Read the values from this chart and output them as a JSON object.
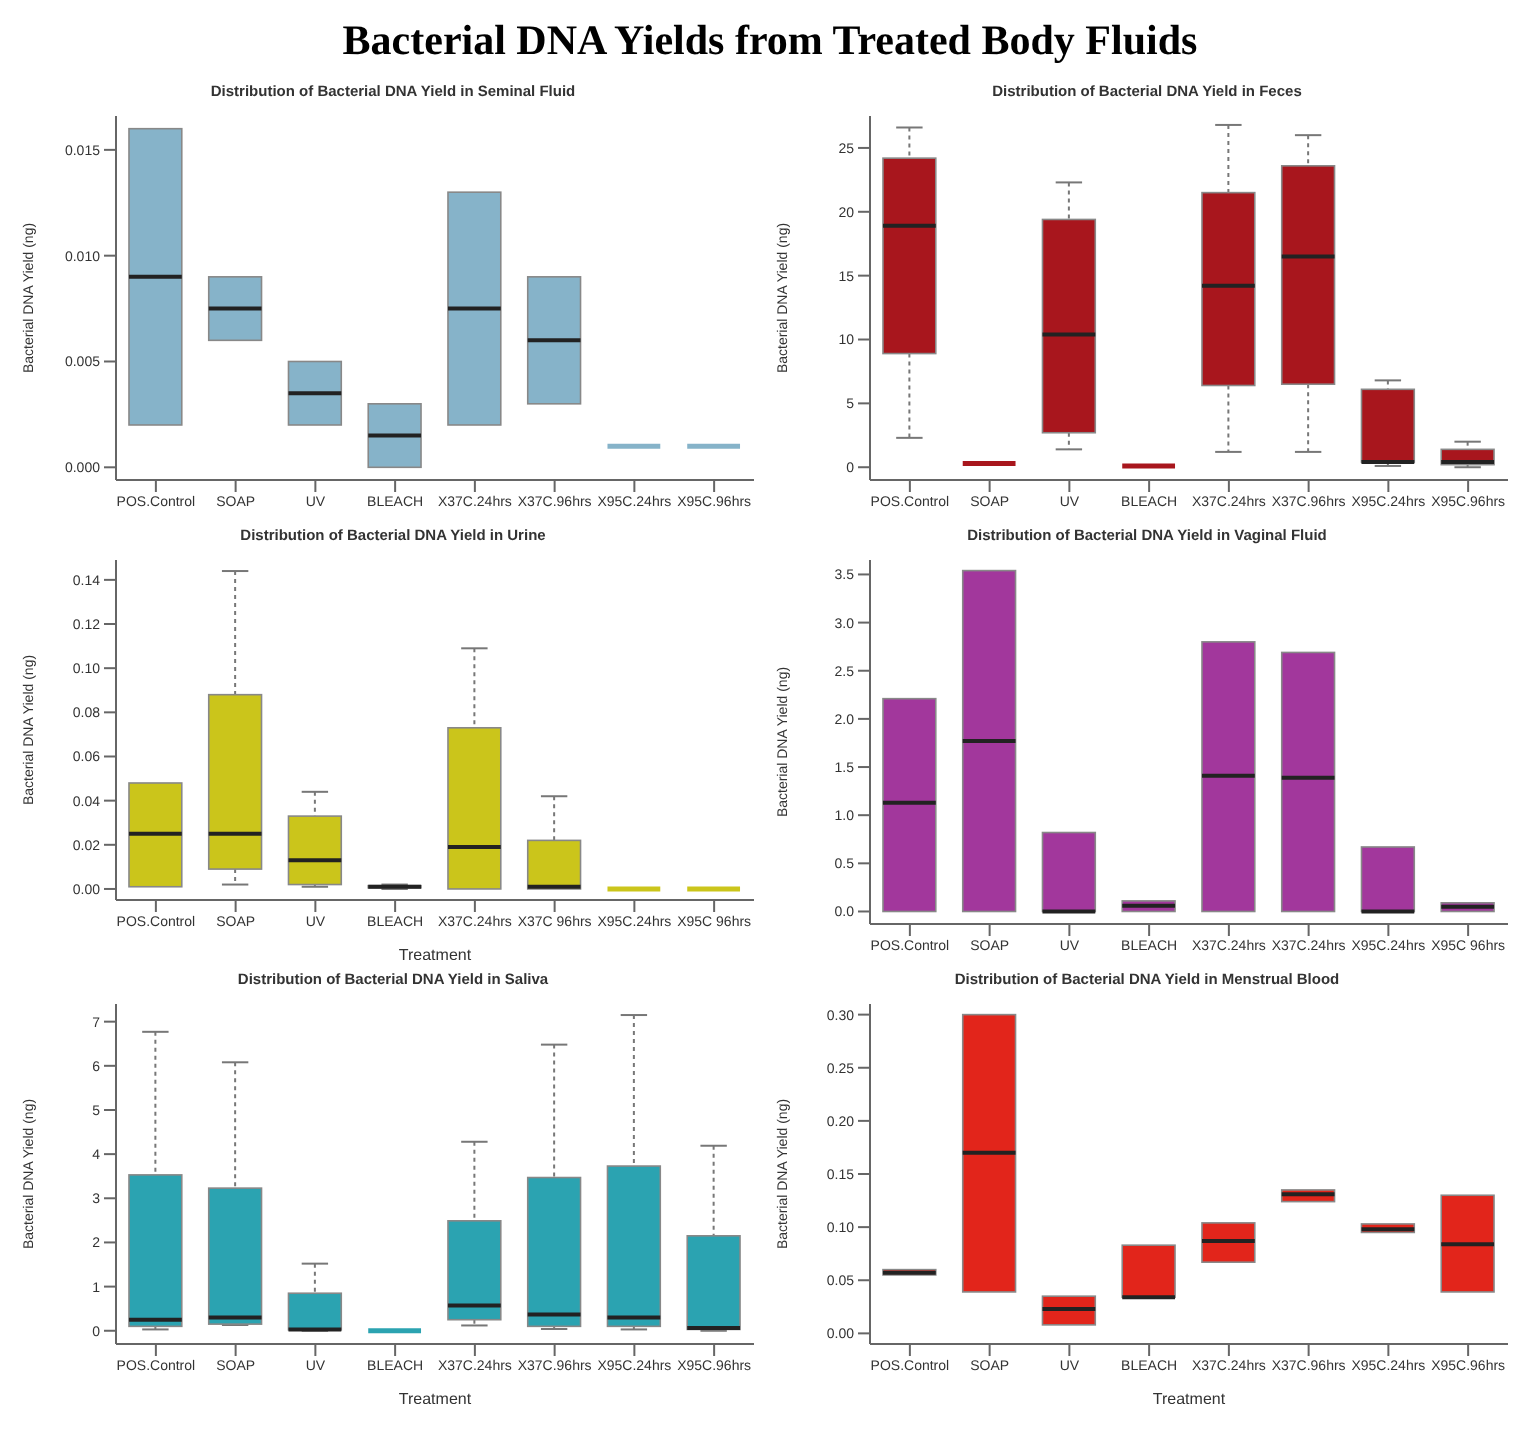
{
  "chart_data": [
    {
      "type": "box",
      "title": "Distribution of Bacterial DNA Yield in Seminal Fluid",
      "ylabel": "Bacterial DNA Yield (ng)",
      "annotations": [
        "Bacterial DNA Yields from Treated Body Fluids"
      ],
      "color": "#86b3c9",
      "categories": [
        "POS.Control",
        "SOAP",
        "UV",
        "BLEACH",
        "X37C.24hrs",
        "X37C.96hrs",
        "X95C.24hrs",
        "X95C.96hrs"
      ],
      "ylim": [
        -0.0006,
        0.0166
      ],
      "yticks": [
        {
          "value": 0,
          "label": "0.000"
        },
        {
          "value": 0.005,
          "label": "0.005"
        },
        {
          "value": 0.01,
          "label": "0.010"
        },
        {
          "value": 0.015,
          "label": "0.015"
        }
      ],
      "boxes": [
        {
          "low": 0.002,
          "q1": 0.002,
          "median": 0.009,
          "q3": 0.016,
          "high": 0.016
        },
        {
          "low": 0.006,
          "q1": 0.006,
          "median": 0.0075,
          "q3": 0.009,
          "high": 0.009
        },
        {
          "low": 0.002,
          "q1": 0.002,
          "median": 0.0035,
          "q3": 0.005,
          "high": 0.005
        },
        {
          "low": 0,
          "q1": 0,
          "median": 0.0015,
          "q3": 0.003,
          "high": 0.003
        },
        {
          "low": 0.002,
          "q1": 0.002,
          "median": 0.0075,
          "q3": 0.013,
          "high": 0.013
        },
        {
          "low": 0.003,
          "q1": 0.003,
          "median": 0.006,
          "q3": 0.009,
          "high": 0.009
        },
        {
          "low": 0.001,
          "q1": 0.001,
          "median": 0.001,
          "q3": 0.001,
          "high": 0.001
        },
        {
          "low": 0.001,
          "q1": 0.001,
          "median": 0.001,
          "q3": 0.001,
          "high": 0.001
        }
      ]
    },
    {
      "type": "box",
      "title": "Distribution of Bacterial DNA Yield in Feces",
      "ylabel": "Bacterial DNA Yield (ng)",
      "color": "#a8161d",
      "categories": [
        "POS.Control",
        "SOAP",
        "UV",
        "BLEACH",
        "X37C.24hrs",
        "X37C.96hrs",
        "X95C.24hrs",
        "X95C.96hrs"
      ],
      "ylim": [
        -1,
        27.5
      ],
      "yticks": [
        0,
        5,
        10,
        15,
        20,
        25
      ],
      "boxes": [
        {
          "low": 2.3,
          "q1": 8.9,
          "median": 18.9,
          "q3": 24.2,
          "high": 26.6
        },
        {
          "low": 0.3,
          "q1": 0.3,
          "median": 0.3,
          "q3": 0.3,
          "high": 0.3
        },
        {
          "low": 1.4,
          "q1": 2.7,
          "median": 10.4,
          "q3": 19.4,
          "high": 22.3
        },
        {
          "low": 0.1,
          "q1": 0.1,
          "median": 0.1,
          "q3": 0.1,
          "high": 0.1
        },
        {
          "low": 1.2,
          "q1": 6.4,
          "median": 14.2,
          "q3": 21.5,
          "high": 26.8
        },
        {
          "low": 1.2,
          "q1": 6.5,
          "median": 16.5,
          "q3": 23.6,
          "high": 26
        },
        {
          "low": 0.1,
          "q1": 0.4,
          "median": 0.4,
          "q3": 6.1,
          "high": 6.8
        },
        {
          "low": 0,
          "q1": 0.2,
          "median": 0.4,
          "q3": 1.4,
          "high": 2
        }
      ]
    },
    {
      "type": "box",
      "title": "Distribution of Bacterial DNA Yield in Urine",
      "ylabel": "Bacterial DNA Yield (ng)",
      "xlabel": "Treatment",
      "color": "#cbc51b",
      "categories": [
        "POS.Control",
        "SOAP",
        "UV",
        "BLEACH",
        "X37C.24hrs",
        "X37C 96hrs",
        "X95C.24hrs",
        "X95C 96hrs"
      ],
      "ylim": [
        -0.005,
        0.149
      ],
      "yticks": [
        {
          "value": 0,
          "label": "0.00"
        },
        {
          "value": 0.02,
          "label": "0.02"
        },
        {
          "value": 0.04,
          "label": "0.04"
        },
        {
          "value": 0.06,
          "label": "0.06"
        },
        {
          "value": 0.08,
          "label": "0.08"
        },
        {
          "value": 0.1,
          "label": "0.10"
        },
        {
          "value": 0.12,
          "label": "0.12"
        },
        {
          "value": 0.14,
          "label": "0.14"
        }
      ],
      "boxes": [
        {
          "low": 0.001,
          "q1": 0.001,
          "median": 0.025,
          "q3": 0.048,
          "high": 0.048
        },
        {
          "low": 0.002,
          "q1": 0.009,
          "median": 0.025,
          "q3": 0.088,
          "high": 0.144
        },
        {
          "low": 0.001,
          "q1": 0.002,
          "median": 0.013,
          "q3": 0.033,
          "high": 0.044
        },
        {
          "low": 0,
          "q1": 0.0005,
          "median": 0.001,
          "q3": 0.0015,
          "high": 0.002
        },
        {
          "low": 0,
          "q1": 0,
          "median": 0.019,
          "q3": 0.073,
          "high": 0.109
        },
        {
          "low": 0,
          "q1": 0,
          "median": 0.001,
          "q3": 0.022,
          "high": 0.042
        },
        {
          "low": 0,
          "q1": 0,
          "median": 0,
          "q3": 0,
          "high": 0
        },
        {
          "low": 0,
          "q1": 0,
          "median": 0,
          "q3": 0,
          "high": 0
        }
      ]
    },
    {
      "type": "box",
      "title": "Distribution of Bacterial DNA Yield in Vaginal Fluid",
      "ylabel": "Bacterial DNA Yield (ng)",
      "color": "#a2379c",
      "categories": [
        "POS.Control",
        "SOAP",
        "UV",
        "BLEACH",
        "X37C.24hrs",
        "X37C.24hrs",
        "X95C.24hrs",
        "X95C 96hrs"
      ],
      "ylim": [
        -0.13,
        3.65
      ],
      "yticks": [
        {
          "value": 0,
          "label": "0.0"
        },
        {
          "value": 0.5,
          "label": "0.5"
        },
        {
          "value": 1,
          "label": "1.0"
        },
        {
          "value": 1.5,
          "label": "1.5"
        },
        {
          "value": 2,
          "label": "2.0"
        },
        {
          "value": 2.5,
          "label": "2.5"
        },
        {
          "value": 3,
          "label": "3.0"
        },
        {
          "value": 3.5,
          "label": "3.5"
        }
      ],
      "boxes": [
        {
          "low": 0,
          "q1": 0,
          "median": 1.13,
          "q3": 2.21,
          "high": 2.21
        },
        {
          "low": 0,
          "q1": 0,
          "median": 1.77,
          "q3": 3.54,
          "high": 3.54
        },
        {
          "low": 0,
          "q1": 0,
          "median": 0,
          "q3": 0.82,
          "high": 0.82
        },
        {
          "low": 0,
          "q1": 0,
          "median": 0.06,
          "q3": 0.11,
          "high": 0.11
        },
        {
          "low": 0,
          "q1": 0,
          "median": 1.41,
          "q3": 2.8,
          "high": 2.8
        },
        {
          "low": 0,
          "q1": 0,
          "median": 1.39,
          "q3": 2.69,
          "high": 2.69
        },
        {
          "low": 0,
          "q1": 0,
          "median": 0,
          "q3": 0.67,
          "high": 0.67
        },
        {
          "low": 0,
          "q1": 0,
          "median": 0.05,
          "q3": 0.09,
          "high": 0.09
        }
      ]
    },
    {
      "type": "box",
      "title": "Distribution of Bacterial DNA Yield in Saliva",
      "ylabel": "Bacterial DNA Yield (ng)",
      "xlabel": "Treatment",
      "color": "#2ba3b1",
      "categories": [
        "POS.Control",
        "SOAP",
        "UV",
        "BLEACH",
        "X37C.24hrs",
        "X37C.96hrs",
        "X95C.24hrs",
        "X95C.96hrs"
      ],
      "ylim": [
        -0.3,
        7.4
      ],
      "yticks": [
        0,
        1,
        2,
        3,
        4,
        5,
        6,
        7
      ],
      "boxes": [
        {
          "low": 0.03,
          "q1": 0.1,
          "median": 0.25,
          "q3": 3.53,
          "high": 6.77
        },
        {
          "low": 0.13,
          "q1": 0.15,
          "median": 0.3,
          "q3": 3.23,
          "high": 6.08
        },
        {
          "low": 0,
          "q1": 0.02,
          "median": 0.03,
          "q3": 0.85,
          "high": 1.52
        },
        {
          "low": 0,
          "q1": 0,
          "median": 0,
          "q3": 0,
          "high": 0
        },
        {
          "low": 0.12,
          "q1": 0.25,
          "median": 0.57,
          "q3": 2.49,
          "high": 4.28
        },
        {
          "low": 0.04,
          "q1": 0.1,
          "median": 0.37,
          "q3": 3.47,
          "high": 6.48
        },
        {
          "low": 0.03,
          "q1": 0.1,
          "median": 0.3,
          "q3": 3.73,
          "high": 7.15
        },
        {
          "low": 0,
          "q1": 0.03,
          "median": 0.06,
          "q3": 2.15,
          "high": 4.19
        }
      ]
    },
    {
      "type": "box",
      "title": "Distribution of Bacterial DNA Yield in Menstrual Blood",
      "ylabel": "Bacterial DNA Yield (ng)",
      "xlabel": "Treatment",
      "color": "#e2251b",
      "categories": [
        "POS.Control",
        "SOAP",
        "UV",
        "BLEACH",
        "X37C.24hrs",
        "X37C.96hrs",
        "X95C.24hrs",
        "X95C.96hrs"
      ],
      "ylim": [
        -0.01,
        0.31
      ],
      "yticks": [
        {
          "value": 0,
          "label": "0.00"
        },
        {
          "value": 0.05,
          "label": "0.05"
        },
        {
          "value": 0.1,
          "label": "0.10"
        },
        {
          "value": 0.15,
          "label": "0.15"
        },
        {
          "value": 0.2,
          "label": "0.20"
        },
        {
          "value": 0.25,
          "label": "0.25"
        },
        {
          "value": 0.3,
          "label": "0.30"
        }
      ],
      "boxes": [
        {
          "low": 0.055,
          "q1": 0.055,
          "median": 0.057,
          "q3": 0.06,
          "high": 0.06
        },
        {
          "low": 0.039,
          "q1": 0.039,
          "median": 0.17,
          "q3": 0.3,
          "high": 0.3
        },
        {
          "low": 0.008,
          "q1": 0.008,
          "median": 0.023,
          "q3": 0.035,
          "high": 0.035
        },
        {
          "low": 0.034,
          "q1": 0.034,
          "median": 0.034,
          "q3": 0.083,
          "high": 0.083
        },
        {
          "low": 0.067,
          "q1": 0.067,
          "median": 0.087,
          "q3": 0.104,
          "high": 0.104
        },
        {
          "low": 0.124,
          "q1": 0.124,
          "median": 0.131,
          "q3": 0.135,
          "high": 0.135
        },
        {
          "low": 0.095,
          "q1": 0.095,
          "median": 0.098,
          "q3": 0.103,
          "high": 0.103
        },
        {
          "low": 0.039,
          "q1": 0.039,
          "median": 0.084,
          "q3": 0.13,
          "high": 0.13
        }
      ]
    }
  ]
}
